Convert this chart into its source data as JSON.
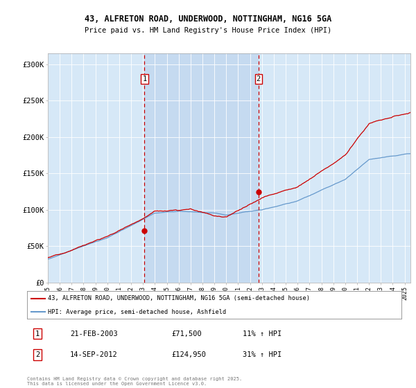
{
  "title_line1": "43, ALFRETON ROAD, UNDERWOOD, NOTTINGHAM, NG16 5GA",
  "title_line2": "Price paid vs. HM Land Registry's House Price Index (HPI)",
  "ylabel_ticks": [
    "£0",
    "£50K",
    "£100K",
    "£150K",
    "£200K",
    "£250K",
    "£300K"
  ],
  "ytick_vals": [
    0,
    50000,
    100000,
    150000,
    200000,
    250000,
    300000
  ],
  "ylim": [
    0,
    315000
  ],
  "xlim_start": 1995.0,
  "xlim_end": 2025.5,
  "xticks": [
    1995,
    1996,
    1997,
    1998,
    1999,
    2000,
    2001,
    2002,
    2003,
    2004,
    2005,
    2006,
    2007,
    2008,
    2009,
    2010,
    2011,
    2012,
    2013,
    2014,
    2015,
    2016,
    2017,
    2018,
    2019,
    2020,
    2021,
    2022,
    2023,
    2024,
    2025
  ],
  "bg_color": "#d6e8f7",
  "fill_color": "#c5daf0",
  "line1_color": "#cc0000",
  "line2_color": "#6699cc",
  "vline_color": "#cc0000",
  "marker1_x": 2003.13,
  "marker1_y": 71500,
  "marker2_x": 2012.71,
  "marker2_y": 124950,
  "legend_label1": "43, ALFRETON ROAD, UNDERWOOD, NOTTINGHAM, NG16 5GA (semi-detached house)",
  "legend_label2": "HPI: Average price, semi-detached house, Ashfield",
  "annotation1_label": "1",
  "annotation1_date": "21-FEB-2003",
  "annotation1_price": "£71,500",
  "annotation1_hpi": "11% ↑ HPI",
  "annotation2_label": "2",
  "annotation2_date": "14-SEP-2012",
  "annotation2_price": "£124,950",
  "annotation2_hpi": "31% ↑ HPI",
  "footer": "Contains HM Land Registry data © Crown copyright and database right 2025.\nThis data is licensed under the Open Government Licence v3.0.",
  "outer_bg": "#ffffff"
}
